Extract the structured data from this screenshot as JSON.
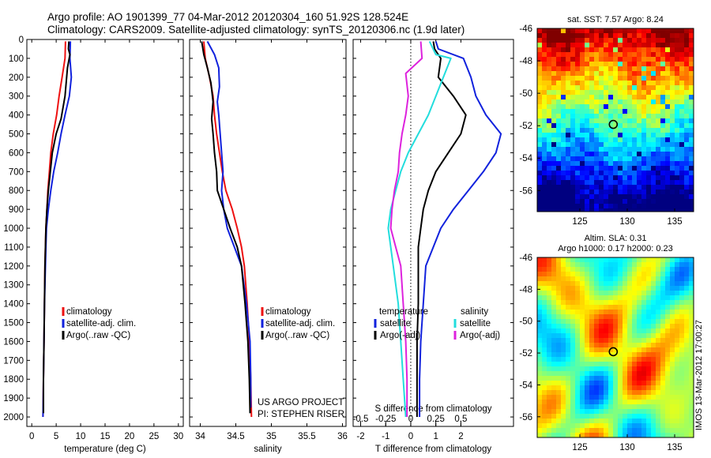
{
  "header": {
    "line1": "Argo profile: AO 1901399_77 04-Mar-2012 20120304_160 51.92S 128.524E",
    "line2": "Climatology: CARS2009. Satellite-adjusted climatology: synTS_20120306.nc (1.9d later)"
  },
  "colors": {
    "climatology": "#ee1111",
    "satellite": "#1122dd",
    "argo": "#000000",
    "argo_s": "#dd22dd",
    "satellite_s": "#22dddd"
  },
  "chart_data": [
    {
      "type": "line",
      "id": "temperature",
      "xlabel": "temperature (deg C)",
      "ylabel": "",
      "xlim": [
        -1,
        31
      ],
      "ylim": [
        2050,
        0
      ],
      "xticks": [
        0,
        5,
        10,
        15,
        20,
        25,
        30
      ],
      "yticks": [
        0,
        100,
        200,
        300,
        400,
        500,
        600,
        700,
        800,
        900,
        1000,
        1100,
        1200,
        1300,
        1400,
        1500,
        1600,
        1700,
        1800,
        1900,
        2000
      ],
      "legend": [
        "climatology",
        "satellite-adj. clim.",
        "Argo(..raw -QC)"
      ],
      "series": [
        {
          "name": "climatology",
          "color": "#ee1111",
          "points": [
            [
              6.9,
              10
            ],
            [
              6.8,
              100
            ],
            [
              6.2,
              200
            ],
            [
              5.6,
              300
            ],
            [
              5.1,
              400
            ],
            [
              4.4,
              500
            ],
            [
              3.9,
              600
            ],
            [
              3.6,
              700
            ],
            [
              3.3,
              800
            ],
            [
              3.1,
              900
            ],
            [
              2.9,
              1000
            ],
            [
              2.8,
              1100
            ],
            [
              2.7,
              1200
            ],
            [
              2.6,
              1400
            ],
            [
              2.5,
              1600
            ],
            [
              2.4,
              1800
            ],
            [
              2.3,
              2000
            ]
          ]
        },
        {
          "name": "satellite-adj. clim.",
          "color": "#1122dd",
          "points": [
            [
              7.9,
              10
            ],
            [
              7.8,
              100
            ],
            [
              8.1,
              200
            ],
            [
              7.7,
              300
            ],
            [
              6.8,
              400
            ],
            [
              6.0,
              500
            ],
            [
              5.3,
              600
            ],
            [
              4.5,
              700
            ],
            [
              3.9,
              800
            ],
            [
              3.4,
              900
            ],
            [
              3.0,
              1000
            ],
            [
              2.9,
              1100
            ],
            [
              2.8,
              1200
            ],
            [
              2.6,
              1400
            ],
            [
              2.5,
              1600
            ],
            [
              2.4,
              1800
            ],
            [
              2.3,
              2000
            ]
          ]
        },
        {
          "name": "Argo(..raw -QC)",
          "color": "#000000",
          "points": [
            [
              7.6,
              10
            ],
            [
              7.5,
              50
            ],
            [
              7.8,
              80
            ],
            [
              7.3,
              150
            ],
            [
              6.8,
              300
            ],
            [
              6.0,
              420
            ],
            [
              5.0,
              500
            ],
            [
              4.2,
              600
            ],
            [
              3.8,
              700
            ],
            [
              3.4,
              800
            ],
            [
              3.1,
              900
            ],
            [
              2.9,
              1000
            ],
            [
              2.8,
              1100
            ],
            [
              2.7,
              1200
            ],
            [
              2.6,
              1400
            ],
            [
              2.5,
              1600
            ],
            [
              2.4,
              1800
            ],
            [
              2.4,
              1980
            ]
          ]
        }
      ]
    },
    {
      "type": "line",
      "id": "salinity",
      "xlabel": "salinity",
      "ylabel": "",
      "xlim": [
        33.85,
        36.05
      ],
      "ylim": [
        2050,
        0
      ],
      "xticks": [
        34,
        34.5,
        35,
        35.5,
        36
      ],
      "legend": [
        "climatology",
        "satellite-adj. clim.",
        "Argo(..raw -QC)"
      ],
      "annotation": [
        "US ARGO PROJECT",
        "PI: STEPHEN RISER"
      ],
      "series": [
        {
          "name": "climatology",
          "color": "#ee1111",
          "points": [
            [
              34.05,
              10
            ],
            [
              34.07,
              100
            ],
            [
              34.13,
              200
            ],
            [
              34.18,
              300
            ],
            [
              34.2,
              400
            ],
            [
              34.23,
              500
            ],
            [
              34.27,
              600
            ],
            [
              34.31,
              700
            ],
            [
              34.36,
              800
            ],
            [
              34.45,
              900
            ],
            [
              34.52,
              1000
            ],
            [
              34.58,
              1100
            ],
            [
              34.62,
              1200
            ],
            [
              34.66,
              1400
            ],
            [
              34.69,
              1600
            ],
            [
              34.71,
              1800
            ],
            [
              34.72,
              2000
            ]
          ]
        },
        {
          "name": "satellite-adj. clim.",
          "color": "#1122dd",
          "points": [
            [
              34.1,
              10
            ],
            [
              34.2,
              80
            ],
            [
              34.26,
              150
            ],
            [
              34.27,
              250
            ],
            [
              34.24,
              330
            ],
            [
              34.26,
              400
            ],
            [
              34.28,
              500
            ],
            [
              34.3,
              600
            ],
            [
              34.32,
              700
            ],
            [
              34.3,
              800
            ],
            [
              34.33,
              900
            ],
            [
              34.38,
              1000
            ],
            [
              34.48,
              1100
            ],
            [
              34.58,
              1200
            ],
            [
              34.65,
              1400
            ],
            [
              34.7,
              1600
            ],
            [
              34.71,
              1800
            ],
            [
              34.71,
              1950
            ]
          ]
        },
        {
          "name": "Argo(..raw -QC)",
          "color": "#000000",
          "points": [
            [
              34.02,
              10
            ],
            [
              34.05,
              80
            ],
            [
              34.1,
              150
            ],
            [
              34.15,
              230
            ],
            [
              34.18,
              330
            ],
            [
              34.16,
              420
            ],
            [
              34.18,
              500
            ],
            [
              34.2,
              600
            ],
            [
              34.23,
              700
            ],
            [
              34.24,
              800
            ],
            [
              34.33,
              900
            ],
            [
              34.42,
              1000
            ],
            [
              34.52,
              1100
            ],
            [
              34.58,
              1200
            ],
            [
              34.63,
              1400
            ],
            [
              34.67,
              1600
            ],
            [
              34.69,
              1800
            ],
            [
              34.7,
              1980
            ]
          ]
        }
      ]
    },
    {
      "type": "line",
      "id": "difference",
      "xlabel": "T difference from climatology",
      "x2label": "S difference from climatology",
      "xlim": [
        -2.3,
        4.1
      ],
      "ylim": [
        2050,
        0
      ],
      "xticks": [
        -2,
        -1,
        0,
        1,
        2
      ],
      "x2ticks": [
        -0.5,
        -0.25,
        0,
        0.25,
        0.5
      ],
      "legend_temperature": [
        "temperature",
        "satellite",
        "Argo(-adj)"
      ],
      "legend_salinity": [
        "salinity",
        "satellite",
        "Argo(-adj)"
      ],
      "series": [
        {
          "name": "temperature satellite",
          "color": "#1122dd",
          "points": [
            [
              1.0,
              10
            ],
            [
              1.1,
              50
            ],
            [
              2.1,
              100
            ],
            [
              2.4,
              200
            ],
            [
              2.6,
              300
            ],
            [
              3.0,
              400
            ],
            [
              3.6,
              500
            ],
            [
              3.4,
              600
            ],
            [
              2.9,
              700
            ],
            [
              2.3,
              800
            ],
            [
              1.7,
              900
            ],
            [
              1.2,
              1000
            ],
            [
              0.9,
              1100
            ],
            [
              0.6,
              1200
            ],
            [
              0.5,
              1400
            ],
            [
              0.4,
              1600
            ],
            [
              0.35,
              1800
            ],
            [
              0.35,
              2000
            ]
          ]
        },
        {
          "name": "temperature Argo(-adj)",
          "color": "#000000",
          "points": [
            [
              0.9,
              10
            ],
            [
              0.95,
              50
            ],
            [
              1.2,
              100
            ],
            [
              1.1,
              200
            ],
            [
              1.7,
              300
            ],
            [
              2.2,
              400
            ],
            [
              2.0,
              500
            ],
            [
              1.5,
              600
            ],
            [
              1.0,
              700
            ],
            [
              0.7,
              800
            ],
            [
              0.5,
              900
            ],
            [
              0.4,
              1000
            ],
            [
              0.3,
              1100
            ],
            [
              0.3,
              1200
            ],
            [
              0.3,
              1400
            ],
            [
              0.25,
              1600
            ],
            [
              0.25,
              1800
            ],
            [
              0.25,
              2000
            ]
          ]
        },
        {
          "name": "salinity satellite",
          "color": "#22dddd",
          "points": [
            [
              0.75,
              10
            ],
            [
              1.0,
              80
            ],
            [
              1.6,
              100
            ],
            [
              1.3,
              200
            ],
            [
              1.0,
              300
            ],
            [
              0.7,
              400
            ],
            [
              0.3,
              500
            ],
            [
              -0.1,
              600
            ],
            [
              -0.4,
              700
            ],
            [
              -0.6,
              800
            ],
            [
              -0.8,
              900
            ],
            [
              -0.9,
              1000
            ],
            [
              -0.8,
              1100
            ],
            [
              -0.7,
              1200
            ],
            [
              -0.5,
              1400
            ],
            [
              -0.4,
              1600
            ],
            [
              -0.3,
              1800
            ],
            [
              -0.2,
              2000
            ]
          ]
        },
        {
          "name": "salinity Argo(-adj)",
          "color": "#dd22dd",
          "points": [
            [
              0.4,
              10
            ],
            [
              0.45,
              100
            ],
            [
              -0.2,
              180
            ],
            [
              -0.1,
              300
            ],
            [
              -0.2,
              400
            ],
            [
              -0.35,
              500
            ],
            [
              -0.45,
              600
            ],
            [
              -0.5,
              700
            ],
            [
              -0.65,
              800
            ],
            [
              -0.75,
              900
            ],
            [
              -0.8,
              1000
            ],
            [
              -0.6,
              1100
            ],
            [
              -0.4,
              1200
            ],
            [
              -0.3,
              1400
            ],
            [
              -0.2,
              1600
            ],
            [
              -0.15,
              1800
            ],
            [
              -0.15,
              2000
            ]
          ]
        }
      ]
    },
    {
      "type": "heatmap",
      "id": "sst-map",
      "title": "sat. SST: 7.57  Argo: 8.24",
      "xlim": [
        120.5,
        137
      ],
      "ylim": [
        -57.3,
        -46
      ],
      "xticks": [
        125,
        130,
        135
      ],
      "yticks": [
        -46,
        -48,
        -50,
        -52,
        -54,
        -56
      ],
      "marker": [
        128.524,
        -51.92
      ]
    },
    {
      "type": "heatmap",
      "id": "sla-map",
      "title": "Altim. SLA: 0.31",
      "subtitle": "Argo h1000: 0.17 h2000: 0.23",
      "xlim": [
        120.5,
        137
      ],
      "ylim": [
        -57.3,
        -46
      ],
      "xticks": [
        125,
        130,
        135
      ],
      "yticks": [
        -46,
        -48,
        -50,
        -52,
        -54,
        -56
      ],
      "marker": [
        128.524,
        -51.92
      ]
    }
  ],
  "side_label": "IMOS 13-Mar-2012 17:00:27"
}
